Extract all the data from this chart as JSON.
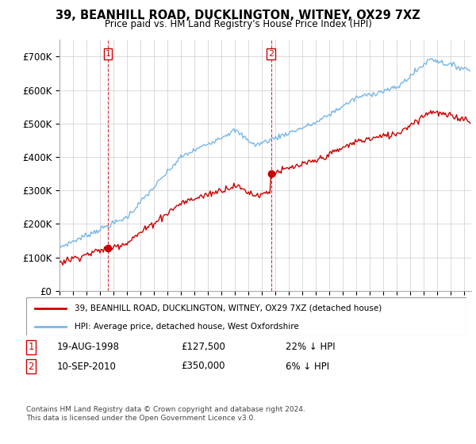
{
  "title": "39, BEANHILL ROAD, DUCKLINGTON, WITNEY, OX29 7XZ",
  "subtitle": "Price paid vs. HM Land Registry's House Price Index (HPI)",
  "sale1_date": "19-AUG-1998",
  "sale1_price": 127500,
  "sale2_date": "10-SEP-2010",
  "sale2_price": 350000,
  "sale1_hpi_diff": "22% ↓ HPI",
  "sale2_hpi_diff": "6% ↓ HPI",
  "legend_line1": "39, BEANHILL ROAD, DUCKLINGTON, WITNEY, OX29 7XZ (detached house)",
  "legend_line2": "HPI: Average price, detached house, West Oxfordshire",
  "footer": "Contains HM Land Registry data © Crown copyright and database right 2024.\nThis data is licensed under the Open Government Licence v3.0.",
  "hpi_color": "#7ab8e8",
  "price_color": "#cc0000",
  "marker_color": "#cc0000",
  "ylim_min": 0,
  "ylim_max": 750000,
  "yticks": [
    0,
    100000,
    200000,
    300000,
    400000,
    500000,
    600000,
    700000
  ],
  "ytick_labels": [
    "£0",
    "£100K",
    "£200K",
    "£300K",
    "£400K",
    "£500K",
    "£600K",
    "£700K"
  ],
  "sale1_time": 1998.625,
  "sale2_time": 2010.708
}
